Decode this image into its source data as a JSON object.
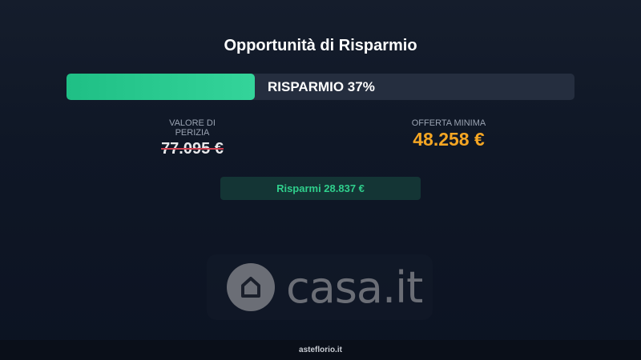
{
  "title": "Opportunità di Risparmio",
  "progress": {
    "percent": 37,
    "label": "RISPARMIO 37%",
    "color": "#2fcf8c"
  },
  "appraisal": {
    "label": "VALORE DI PERIZIA",
    "value": "77.095 €"
  },
  "min_offer": {
    "label": "OFFERTA MINIMA",
    "value": "48.258 €",
    "color": "#f5a623"
  },
  "savings": {
    "label": "Risparmi 28.837 €"
  },
  "logo": {
    "text": "casa.it",
    "icon": "house-icon"
  },
  "footer": {
    "text": "asteflorio.it"
  }
}
